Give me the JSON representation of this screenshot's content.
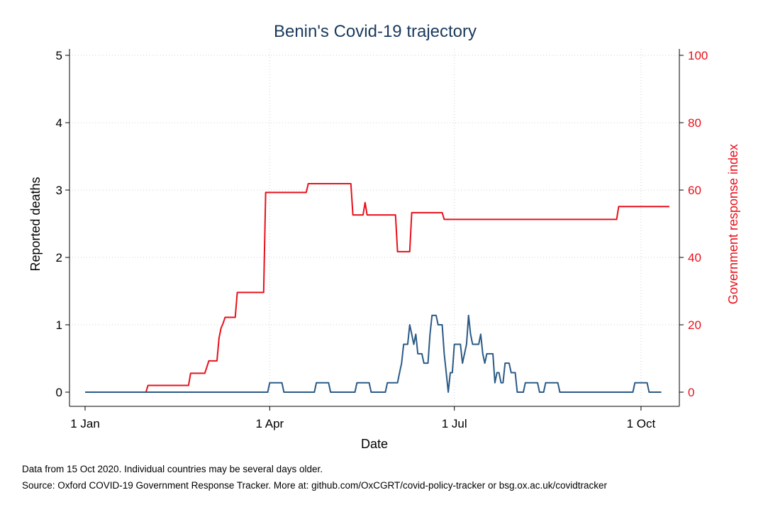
{
  "chart_data": {
    "type": "line",
    "title": "Benin's Covid-19 trajectory",
    "xlabel": "Date",
    "ylabel_left": "Reported deaths",
    "ylabel_right": "Government response index",
    "x_ticks": [
      "1 Jan",
      "1 Apr",
      "1 Jul",
      "1 Oct"
    ],
    "x_tick_days": [
      0,
      91,
      182,
      274
    ],
    "y_left_ticks": [
      "0",
      "1",
      "2",
      "3",
      "4",
      "5"
    ],
    "y_left_range": [
      0,
      5
    ],
    "y_right_ticks": [
      "0",
      "20",
      "40",
      "60",
      "80",
      "100"
    ],
    "y_right_range": [
      0,
      100
    ],
    "grid": true,
    "colors": {
      "deaths": "#2a5a86",
      "response": "#e8101a",
      "title": "#1a3a5c",
      "grid": "#d0d0d0"
    },
    "series": [
      {
        "axis": "right",
        "points": [
          [
            "2020-01-01",
            0
          ],
          [
            "2020-01-31",
            0
          ],
          [
            "2020-02-01",
            2
          ],
          [
            "2020-02-21",
            2
          ],
          [
            "2020-02-22",
            5.6
          ],
          [
            "2020-02-29",
            5.6
          ],
          [
            "2020-03-02",
            9.3
          ],
          [
            "2020-03-06",
            9.3
          ],
          [
            "2020-03-07",
            16
          ],
          [
            "2020-03-08",
            19
          ],
          [
            "2020-03-09",
            20.4
          ],
          [
            "2020-03-10",
            22.2
          ],
          [
            "2020-03-15",
            22.2
          ],
          [
            "2020-03-16",
            29.6
          ],
          [
            "2020-03-29",
            29.6
          ],
          [
            "2020-03-30",
            59.3
          ],
          [
            "2020-04-19",
            59.3
          ],
          [
            "2020-04-20",
            61.9
          ],
          [
            "2020-05-11",
            61.9
          ],
          [
            "2020-05-12",
            52.6
          ],
          [
            "2020-05-17",
            52.6
          ],
          [
            "2020-05-18",
            56.3
          ],
          [
            "2020-05-19",
            52.6
          ],
          [
            "2020-06-02",
            52.6
          ],
          [
            "2020-06-03",
            41.7
          ],
          [
            "2020-06-09",
            41.7
          ],
          [
            "2020-06-10",
            53.3
          ],
          [
            "2020-06-25",
            53.3
          ],
          [
            "2020-06-26",
            51.3
          ],
          [
            "2020-09-19",
            51.3
          ],
          [
            "2020-09-20",
            55.1
          ],
          [
            "2020-10-15",
            55.1
          ]
        ]
      },
      {
        "axis": "left",
        "points": [
          [
            "2020-01-01",
            0
          ],
          [
            "2020-03-31",
            0
          ],
          [
            "2020-04-01",
            0.14
          ],
          [
            "2020-04-07",
            0.14
          ],
          [
            "2020-04-08",
            0
          ],
          [
            "2020-04-23",
            0
          ],
          [
            "2020-04-24",
            0.14
          ],
          [
            "2020-04-30",
            0.14
          ],
          [
            "2020-05-01",
            0
          ],
          [
            "2020-05-13",
            0
          ],
          [
            "2020-05-14",
            0.14
          ],
          [
            "2020-05-20",
            0.14
          ],
          [
            "2020-05-21",
            0
          ],
          [
            "2020-05-28",
            0
          ],
          [
            "2020-05-29",
            0.14
          ],
          [
            "2020-06-03",
            0.14
          ],
          [
            "2020-06-04",
            0.29
          ],
          [
            "2020-06-05",
            0.43
          ],
          [
            "2020-06-06",
            0.71
          ],
          [
            "2020-06-08",
            0.71
          ],
          [
            "2020-06-09",
            1.0
          ],
          [
            "2020-06-10",
            0.86
          ],
          [
            "2020-06-11",
            0.71
          ],
          [
            "2020-06-12",
            0.86
          ],
          [
            "2020-06-13",
            0.57
          ],
          [
            "2020-06-15",
            0.57
          ],
          [
            "2020-06-16",
            0.43
          ],
          [
            "2020-06-18",
            0.43
          ],
          [
            "2020-06-19",
            0.86
          ],
          [
            "2020-06-20",
            1.14
          ],
          [
            "2020-06-22",
            1.14
          ],
          [
            "2020-06-23",
            1.0
          ],
          [
            "2020-06-25",
            1.0
          ],
          [
            "2020-06-26",
            0.57
          ],
          [
            "2020-06-27",
            0.29
          ],
          [
            "2020-06-28",
            0.0
          ],
          [
            "2020-06-29",
            0.29
          ],
          [
            "2020-06-30",
            0.29
          ],
          [
            "2020-07-01",
            0.71
          ],
          [
            "2020-07-04",
            0.71
          ],
          [
            "2020-07-05",
            0.43
          ],
          [
            "2020-07-07",
            0.71
          ],
          [
            "2020-07-08",
            1.14
          ],
          [
            "2020-07-09",
            0.86
          ],
          [
            "2020-07-10",
            0.71
          ],
          [
            "2020-07-13",
            0.71
          ],
          [
            "2020-07-14",
            0.86
          ],
          [
            "2020-07-15",
            0.57
          ],
          [
            "2020-07-16",
            0.43
          ],
          [
            "2020-07-17",
            0.57
          ],
          [
            "2020-07-20",
            0.57
          ],
          [
            "2020-07-21",
            0.14
          ],
          [
            "2020-07-22",
            0.29
          ],
          [
            "2020-07-23",
            0.29
          ],
          [
            "2020-07-24",
            0.14
          ],
          [
            "2020-07-25",
            0.14
          ],
          [
            "2020-07-26",
            0.43
          ],
          [
            "2020-07-28",
            0.43
          ],
          [
            "2020-07-29",
            0.29
          ],
          [
            "2020-07-31",
            0.29
          ],
          [
            "2020-08-01",
            0
          ],
          [
            "2020-08-04",
            0
          ],
          [
            "2020-08-05",
            0.14
          ],
          [
            "2020-08-11",
            0.14
          ],
          [
            "2020-08-12",
            0
          ],
          [
            "2020-08-14",
            0
          ],
          [
            "2020-08-15",
            0.14
          ],
          [
            "2020-08-21",
            0.14
          ],
          [
            "2020-08-22",
            0
          ],
          [
            "2020-09-27",
            0
          ],
          [
            "2020-09-28",
            0.14
          ],
          [
            "2020-10-04",
            0.14
          ],
          [
            "2020-10-05",
            0
          ],
          [
            "2020-10-11",
            0
          ]
        ]
      }
    ]
  },
  "footnotes": [
    "Data from 15 Oct 2020. Individual countries may be several days older.",
    "Source: Oxford COVID-19 Government Response Tracker. More at: github.com/OxCGRT/covid-policy-tracker or bsg.ox.ac.uk/covidtracker"
  ]
}
